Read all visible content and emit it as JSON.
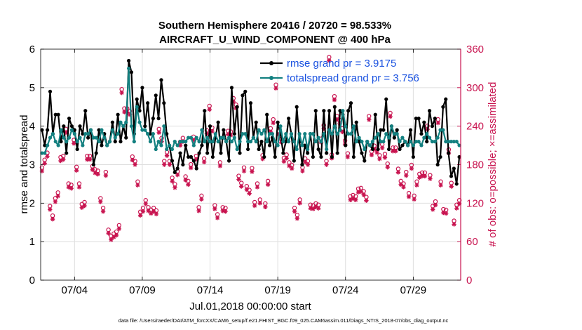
{
  "chart_data": {
    "type": "line",
    "title_line1": "Southern Hemisphere 20416 / 20720 = 98.533%",
    "title_line2": "AIRCRAFT_U_WIND_COMPONENT @ 400 hPa",
    "xlabel": "Jul.01,2018 00:00:00 start",
    "ylabel_left": "rmse and totalspread",
    "ylabel_right": "# of obs: o=possible; ×=assimilated",
    "footnote": "data file: /Users/raeder/DAI/ATM_forcXX/CAM6_setup/f.e21.FHIST_BGC.f09_025.CAM6assim.011/Diags_NTrS_2018-07/obs_diag_output.nc",
    "xlim": [
      1.0,
      32.0
    ],
    "ylim_left": [
      0,
      6
    ],
    "ylim_right": [
      0,
      360
    ],
    "x_ticks": [
      3.5,
      8.5,
      13.5,
      18.5,
      23.5,
      28.5
    ],
    "x_tick_labels": [
      "07/04",
      "07/09",
      "07/14",
      "07/19",
      "07/24",
      "07/29"
    ],
    "y_ticks_left": [
      0,
      1,
      2,
      3,
      4,
      5,
      6
    ],
    "y_tick_labels_left": [
      "0",
      "1",
      "2",
      "3",
      "4",
      "5",
      "6"
    ],
    "y_ticks_right": [
      0,
      60,
      120,
      180,
      240,
      300,
      360
    ],
    "y_tick_labels_right": [
      "0",
      "60",
      "120",
      "180",
      "240",
      "300",
      "360"
    ],
    "colors": {
      "rmse": "#000000",
      "spread": "#138080",
      "obs": "#c8134f",
      "legend_text": "#1a52e0",
      "grid": "#dedede"
    },
    "legend": [
      {
        "name": "rmse grand pr = 3.9175"
      },
      {
        "name": "totalspread grand pr = 3.756"
      }
    ],
    "series": [
      {
        "name": "rmse",
        "values": [
          3.9,
          3.5,
          3.9,
          4.9,
          3.8,
          4.3,
          4.3,
          3.6,
          4.0,
          3.3,
          4.2,
          4.0,
          3.9,
          3.4,
          4.0,
          3.8,
          4.4,
          3.7,
          3.9,
          3.0,
          3.3,
          3.9,
          3.5,
          3.8,
          3.5,
          3.6,
          4.1,
          3.6,
          4.3,
          3.6,
          4.0,
          3.7,
          5.7,
          5.4,
          3.8,
          4.7,
          4.4,
          5.0,
          4.0,
          4.6,
          3.8,
          4.2,
          4.8,
          4.2,
          5.2,
          4.6,
          3.8,
          3.5,
          3.1,
          2.8,
          2.9,
          3.3,
          3.0,
          3.5,
          3.2,
          3.2,
          3.1,
          2.9,
          3.3,
          3.5,
          4.4,
          3.3,
          4.0,
          3.2,
          3.7,
          4.1,
          3.3,
          3.9,
          3.6,
          3.1,
          5.0,
          3.8,
          4.5,
          3.3,
          4.8,
          4.9,
          3.4,
          4.6,
          3.7,
          4.1,
          3.4,
          3.6,
          3.2,
          4.3,
          3.5,
          3.7,
          3.2,
          4.1,
          3.8,
          3.3,
          3.6,
          4.2,
          3.8,
          3.1,
          4.5,
          3.6,
          3.0,
          3.5,
          3.3,
          3.8,
          3.2,
          4.4,
          3.4,
          3.2,
          4.4,
          3.3,
          4.4,
          3.2,
          4.5,
          3.3,
          4.4,
          4.3,
          3.5,
          4.4,
          4.6,
          3.2,
          4.1,
          3.6,
          3.3,
          3.1,
          3.6,
          3.5,
          3.4,
          4.3,
          3.4,
          3.9,
          3.9,
          4.7,
          3.4,
          4.0,
          3.7,
          3.9,
          3.4,
          3.5,
          3.6,
          3.5,
          3.9,
          3.2,
          4.2,
          4.2,
          3.8,
          4.1,
          3.6,
          4.4,
          4.0,
          4.2,
          3.0,
          3.2,
          4.5,
          4.7,
          3.3,
          2.7,
          2.9,
          2.5,
          3.2
        ]
      },
      {
        "name": "totalspread",
        "values": [
          3.3,
          3.3,
          3.5,
          3.7,
          3.8,
          3.6,
          3.5,
          3.9,
          3.7,
          3.6,
          3.7,
          3.9,
          3.8,
          3.6,
          3.7,
          3.5,
          3.8,
          3.8,
          3.9,
          3.7,
          3.7,
          3.6,
          3.9,
          3.7,
          3.5,
          3.6,
          3.9,
          3.7,
          3.8,
          4.1,
          4.0,
          4.1,
          5.5,
          4.0,
          3.6,
          4.5,
          4.1,
          3.9,
          3.9,
          3.8,
          3.6,
          3.8,
          3.4,
          3.6,
          3.5,
          4.0,
          3.4,
          3.5,
          3.4,
          3.6,
          3.5,
          3.6,
          3.6,
          3.6,
          3.7,
          3.7,
          3.5,
          3.7,
          3.6,
          3.9,
          3.6,
          3.7,
          3.6,
          3.6,
          3.8,
          3.6,
          3.7,
          3.7,
          3.6,
          3.7,
          3.6,
          3.7,
          3.4,
          3.6,
          3.8,
          3.8,
          3.6,
          3.6,
          3.7,
          3.6,
          3.9,
          3.8,
          3.9,
          3.6,
          3.8,
          3.8,
          3.6,
          3.5,
          4.0,
          3.6,
          3.8,
          3.6,
          3.8,
          3.6,
          3.4,
          3.8,
          3.5,
          3.8,
          3.4,
          3.8,
          3.8,
          3.6,
          3.7,
          3.6,
          3.8,
          3.4,
          3.9,
          3.8,
          4.0,
          3.8,
          3.9,
          4.4,
          4.0,
          3.8,
          3.8,
          4.0,
          3.6,
          3.7,
          3.6,
          3.4,
          3.6,
          3.5,
          3.6,
          3.7,
          3.8,
          3.6,
          3.6,
          3.8,
          3.7,
          4.0,
          3.8,
          3.8,
          3.6,
          3.7,
          3.6,
          3.5,
          3.6,
          3.5,
          3.6,
          3.6,
          3.5,
          3.7,
          3.8,
          3.7,
          3.6,
          3.6,
          3.7,
          3.9,
          3.9,
          3.6,
          3.6,
          3.6,
          3.6,
          3.6,
          3.5
        ]
      },
      {
        "name": "obs_possible",
        "values": [
          170,
          182,
          193,
          110,
          95,
          122,
          131,
          186,
          188,
          230,
          145,
          143,
          213,
          171,
          145,
          113,
          116,
          188,
          188,
          172,
          167,
          165,
          122,
          107,
          163,
          73,
          63,
          67,
          70,
          80,
          292,
          262,
          262,
          258,
          187,
          180,
          148,
          101,
          107,
          119,
          108,
          104,
          107,
          103,
          230,
          216,
          180,
          194,
          180,
          154,
          144,
          164,
          210,
          216,
          156,
          149,
          175,
          218,
          188,
          108,
          126,
          184,
          228,
          266,
          232,
          111,
          97,
          178,
          108,
          107,
          227,
          226,
          278,
          268,
          157,
          146,
          170,
          141,
          135,
          169,
          116,
          145,
          120,
          189,
          114,
          149,
          231,
          245,
          299,
          227,
          215,
          185,
          190,
          178,
          174,
          107,
          96,
          120,
          170,
          184,
          180,
          112,
          111,
          114,
          112,
          215,
          236,
          180,
          342,
          190,
          281,
          250,
          244,
          231,
          212,
          192,
          125,
          127,
          125,
          137,
          138,
          133,
          124,
          250,
          195,
          204,
          199,
          189,
          206,
          191,
          176,
          255,
          201,
          201,
          168,
          149,
          145,
          163,
          130,
          174,
          126,
          148,
          160,
          162,
          162,
          235,
          158,
          110,
          117,
          245,
          148,
          105,
          104,
          198,
          146,
          87,
          112,
          119
        ],
        "marker": "o"
      },
      {
        "name": "obs_assimilated",
        "values": [
          170,
          182,
          193,
          110,
          95,
          122,
          131,
          186,
          188,
          230,
          145,
          143,
          213,
          171,
          145,
          113,
          116,
          188,
          188,
          172,
          167,
          165,
          122,
          107,
          163,
          73,
          63,
          67,
          70,
          80,
          292,
          262,
          262,
          258,
          187,
          180,
          148,
          101,
          107,
          119,
          108,
          104,
          107,
          103,
          230,
          216,
          180,
          194,
          180,
          154,
          144,
          164,
          210,
          216,
          156,
          149,
          175,
          218,
          188,
          108,
          126,
          184,
          228,
          266,
          232,
          111,
          97,
          178,
          108,
          107,
          227,
          226,
          278,
          268,
          157,
          146,
          170,
          141,
          135,
          169,
          116,
          145,
          120,
          189,
          114,
          149,
          231,
          245,
          299,
          227,
          215,
          185,
          190,
          178,
          174,
          107,
          96,
          120,
          170,
          184,
          180,
          112,
          111,
          114,
          112,
          215,
          236,
          180,
          342,
          190,
          281,
          250,
          244,
          231,
          212,
          192,
          125,
          127,
          125,
          137,
          138,
          133,
          124,
          250,
          195,
          204,
          199,
          189,
          206,
          191,
          176,
          255,
          201,
          201,
          168,
          149,
          145,
          163,
          130,
          174,
          126,
          148,
          160,
          162,
          162,
          235,
          158,
          110,
          117,
          245,
          148,
          105,
          104,
          198,
          146,
          87,
          112,
          119
        ],
        "marker": "*"
      }
    ]
  }
}
